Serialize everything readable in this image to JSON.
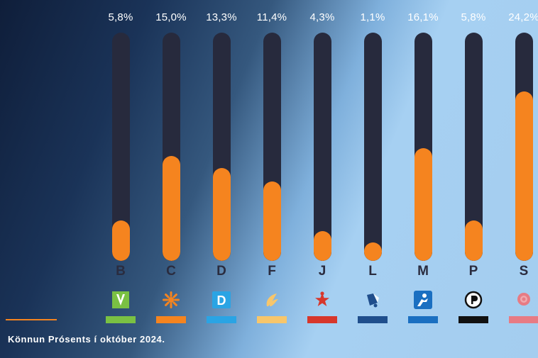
{
  "chart_data": {
    "type": "bar",
    "categories": [
      "B",
      "C",
      "D",
      "F",
      "J",
      "L",
      "M",
      "P",
      "S"
    ],
    "values": [
      5.8,
      15.0,
      13.3,
      11.4,
      4.3,
      1.1,
      16.1,
      5.8,
      24.2
    ],
    "value_labels": [
      "5,8%",
      "15,0%",
      "13,3%",
      "11,4%",
      "4,3%",
      "1,1%",
      "16,1%",
      "5,8%",
      "24,2%"
    ],
    "ylim": [
      0,
      30
    ],
    "bar_color": "#f5841f",
    "track_color": "#272a3d",
    "party_colors": [
      "#7ac143",
      "#f5841f",
      "#2aa4e4",
      "#f7c66b",
      "#d7372c",
      "#1f4e8c",
      "#1a6fc1",
      "#111111",
      "#e77b84"
    ],
    "party_icons": [
      "party-b-logo-icon",
      "party-c-logo-icon",
      "party-d-logo-icon",
      "party-f-logo-icon",
      "party-j-logo-icon",
      "party-l-logo-icon",
      "party-m-logo-icon",
      "party-p-logo-icon",
      "party-s-logo-icon"
    ],
    "legend": "none",
    "grid": false
  },
  "footer": {
    "caption": "Könnun Prósents í október 2024."
  }
}
